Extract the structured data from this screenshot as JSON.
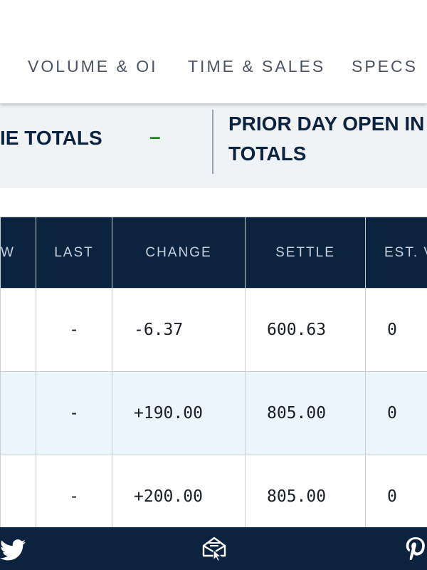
{
  "tabs": [
    "VOLUME & OI",
    "TIME & SALES",
    "SPECS"
  ],
  "totals": {
    "volume_label": "IE TOTALS",
    "volume_value": "–",
    "prior_label_line1": "PRIOR DAY OPEN IN",
    "prior_label_line2": "TOTALS"
  },
  "table": {
    "headers": [
      "W",
      "LAST",
      "CHANGE",
      "SETTLE",
      "EST. V"
    ],
    "rows": [
      {
        "last": "-",
        "change": "-6.37",
        "settle": "600.63",
        "est": "0"
      },
      {
        "last": "-",
        "change": "+190.00",
        "settle": "805.00",
        "est": "0"
      },
      {
        "last": "-",
        "change": "+200.00",
        "settle": "805.00",
        "est": "0"
      }
    ]
  },
  "share": {
    "icons": [
      "twitter-icon",
      "email-icon",
      "pinterest-icon"
    ]
  }
}
